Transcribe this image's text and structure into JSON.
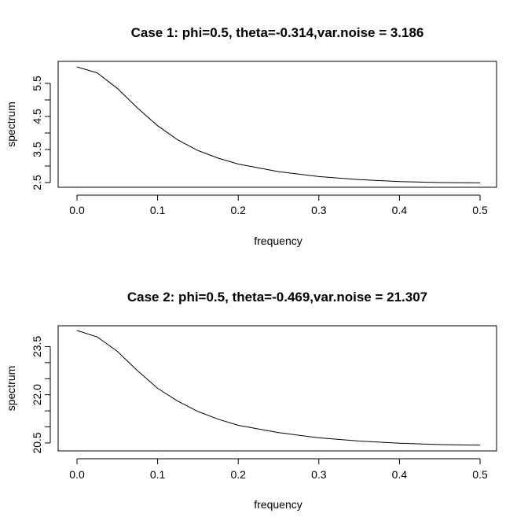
{
  "chart_data": [
    {
      "type": "line",
      "title": "Case 1: phi=0.5, theta=-0.314,var.noise = 3.186",
      "xlabel": "frequency",
      "ylabel": "spectrum",
      "xlim": [
        0,
        0.5
      ],
      "ylim": [
        2.5,
        6.0
      ],
      "xticks": [
        0.0,
        0.1,
        0.2,
        0.3,
        0.4,
        0.5
      ],
      "xtick_labels": [
        "0.0",
        "0.1",
        "0.2",
        "0.3",
        "0.4",
        "0.5"
      ],
      "yticks": [
        2.5,
        3.0,
        3.5,
        4.0,
        4.5,
        5.0,
        5.5
      ],
      "ytick_labels": [
        "2.5",
        "",
        "3.5",
        "",
        "4.5",
        "",
        "5.5"
      ],
      "grid": false,
      "x": [
        0.0,
        0.025,
        0.05,
        0.075,
        0.1,
        0.125,
        0.15,
        0.175,
        0.2,
        0.25,
        0.3,
        0.35,
        0.4,
        0.45,
        0.5
      ],
      "y": [
        6.0,
        5.82,
        5.35,
        4.76,
        4.22,
        3.79,
        3.47,
        3.24,
        3.06,
        2.83,
        2.68,
        2.59,
        2.53,
        2.5,
        2.49
      ]
    },
    {
      "type": "line",
      "title": "Case 2: phi=0.5, theta=-0.469,var.noise = 21.307",
      "xlabel": "frequency",
      "ylabel": "spectrum",
      "xlim": [
        0,
        0.5
      ],
      "ylim": [
        20.4,
        24.0
      ],
      "xticks": [
        0.0,
        0.1,
        0.2,
        0.3,
        0.4,
        0.5
      ],
      "xtick_labels": [
        "0.0",
        "0.1",
        "0.2",
        "0.3",
        "0.4",
        "0.5"
      ],
      "yticks": [
        20.5,
        21.0,
        21.5,
        22.0,
        22.5,
        23.0,
        23.5
      ],
      "ytick_labels": [
        "20.5",
        "",
        "",
        "22.0",
        "",
        "",
        "23.5"
      ],
      "grid": false,
      "x": [
        0.0,
        0.025,
        0.05,
        0.075,
        0.1,
        0.125,
        0.15,
        0.175,
        0.2,
        0.25,
        0.3,
        0.35,
        0.4,
        0.45,
        0.5
      ],
      "y": [
        24.0,
        23.8,
        23.35,
        22.75,
        22.2,
        21.8,
        21.48,
        21.24,
        21.05,
        20.82,
        20.66,
        20.56,
        20.49,
        20.45,
        20.43
      ]
    }
  ]
}
